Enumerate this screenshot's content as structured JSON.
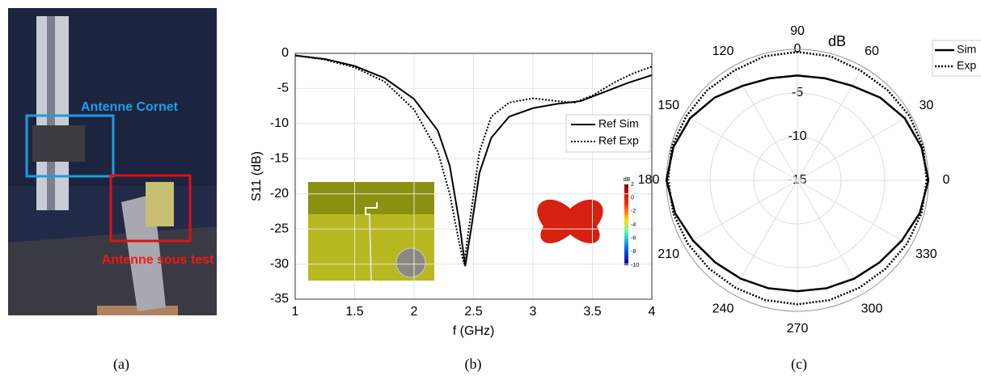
{
  "photo": {
    "labels": [
      "Antenne Cornet",
      "Antenne sous test"
    ]
  },
  "captions": [
    "(a)",
    "(b)",
    "(c)"
  ],
  "chart_data": [
    {
      "type": "line",
      "xlabel": "f (GHz)",
      "ylabel": "S11 (dB)",
      "xlim": [
        1,
        4
      ],
      "xticks": [
        1,
        1.5,
        2,
        2.5,
        3,
        3.5,
        4
      ],
      "ylim": [
        -35,
        0
      ],
      "yticks": [
        -35,
        -30,
        -25,
        -20,
        -15,
        -10,
        -5,
        0
      ],
      "grid": true,
      "legend": "upper right",
      "series": [
        {
          "name": "Ref Sim",
          "color": "#000000",
          "style": "solid",
          "x": [
            1,
            1.25,
            1.5,
            1.75,
            2,
            2.2,
            2.3,
            2.38,
            2.43,
            2.48,
            2.55,
            2.65,
            2.8,
            3,
            3.2,
            3.4,
            3.6,
            3.8,
            4
          ],
          "values": [
            -0.3,
            -0.8,
            -1.8,
            -3.5,
            -6.5,
            -11,
            -16,
            -24,
            -30.3,
            -25,
            -17,
            -12,
            -9,
            -7.8,
            -7.2,
            -6.8,
            -5.5,
            -4.2,
            -3.1
          ]
        },
        {
          "name": "Ref Exp",
          "color": "#000000",
          "style": "dotted",
          "x": [
            1,
            1.25,
            1.5,
            1.75,
            2,
            2.2,
            2.3,
            2.38,
            2.42,
            2.46,
            2.55,
            2.65,
            2.8,
            3,
            3.2,
            3.35,
            3.5,
            3.7,
            3.85,
            4
          ],
          "values": [
            -0.3,
            -0.9,
            -2,
            -4,
            -8,
            -14,
            -20,
            -27,
            -30,
            -25,
            -14,
            -9,
            -7,
            -6.4,
            -6.8,
            -7,
            -6,
            -4,
            -2.8,
            -1.9
          ]
        }
      ],
      "inset_colorbar": {
        "title": "dB",
        "ticks": [
          2,
          0,
          -2,
          -4,
          -6,
          -8,
          -10
        ]
      }
    },
    {
      "type": "polar",
      "unit": "dB",
      "rlim": [
        -15,
        0
      ],
      "rticks": [
        -15,
        -10,
        -5,
        0
      ],
      "thetaticks": [
        0,
        30,
        60,
        90,
        120,
        150,
        180,
        210,
        240,
        270,
        300,
        330
      ],
      "legend": "upper right",
      "series": [
        {
          "name": "Sim",
          "color": "#000000",
          "style": "solid",
          "theta": [
            0,
            15,
            30,
            45,
            60,
            75,
            90,
            105,
            120,
            135,
            150,
            165,
            180,
            195,
            210,
            225,
            240,
            255,
            270,
            285,
            300,
            315,
            330,
            345,
            360
          ],
          "values": [
            0,
            -0.3,
            -0.8,
            -1.6,
            -2.5,
            -2.9,
            -3,
            -2.9,
            -2.5,
            -1.6,
            -0.8,
            -0.3,
            0,
            -0.5,
            -1.2,
            -1.7,
            -2,
            -2.2,
            -2.3,
            -2.2,
            -2,
            -1.7,
            -1.2,
            -0.5,
            0
          ]
        },
        {
          "name": "Exp",
          "color": "#000000",
          "style": "dotted",
          "theta": [
            0,
            15,
            30,
            45,
            60,
            75,
            90,
            105,
            120,
            135,
            150,
            165,
            180,
            195,
            210,
            225,
            240,
            255,
            270,
            285,
            300,
            315,
            330,
            345,
            360
          ],
          "values": [
            -0.2,
            -0.1,
            -0.2,
            -0.4,
            -0.5,
            -0.3,
            -0.3,
            -0.3,
            -0.5,
            -0.4,
            -0.3,
            -0.1,
            -0.2,
            -0.3,
            -0.5,
            -0.7,
            -0.8,
            -0.8,
            -0.8,
            -0.8,
            -0.8,
            -0.7,
            -0.5,
            -0.3,
            -0.2
          ]
        }
      ]
    }
  ]
}
